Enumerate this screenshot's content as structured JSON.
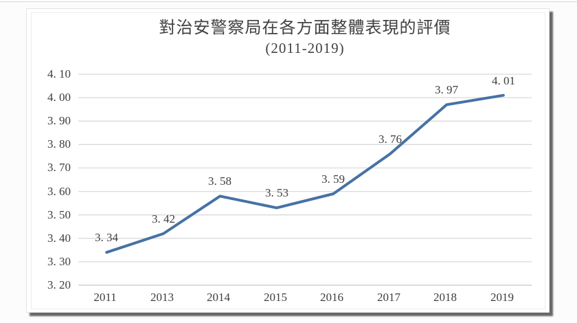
{
  "chart_data": {
    "type": "line",
    "title": "對治安警察局在各方面整體表現的評價",
    "subtitle": "(2011-2019)",
    "categories": [
      "2011",
      "2013",
      "2014",
      "2015",
      "2016",
      "2017",
      "2018",
      "2019"
    ],
    "values": [
      3.34,
      3.42,
      3.58,
      3.53,
      3.59,
      3.76,
      3.97,
      4.01
    ],
    "point_labels": [
      "3. 34",
      "3. 42",
      "3. 58",
      "3. 53",
      "3. 59",
      "3. 76",
      "3. 97",
      "4. 01"
    ],
    "xlabel": "",
    "ylabel": "",
    "ylim": [
      3.2,
      4.1
    ],
    "ytick_step": 0.1,
    "ytick_labels": [
      "4. 10",
      "4. 00",
      "3. 90",
      "3. 80",
      "3. 70",
      "3. 60",
      "3. 50",
      "3. 40",
      "3. 30",
      "3. 20"
    ],
    "grid": "horizontal-on",
    "legend": "none",
    "line_color": "#4672a5",
    "label_color": "#3d3d3d",
    "gridline_color": "#dadada",
    "axis_line_color": "#c8c8c8"
  }
}
